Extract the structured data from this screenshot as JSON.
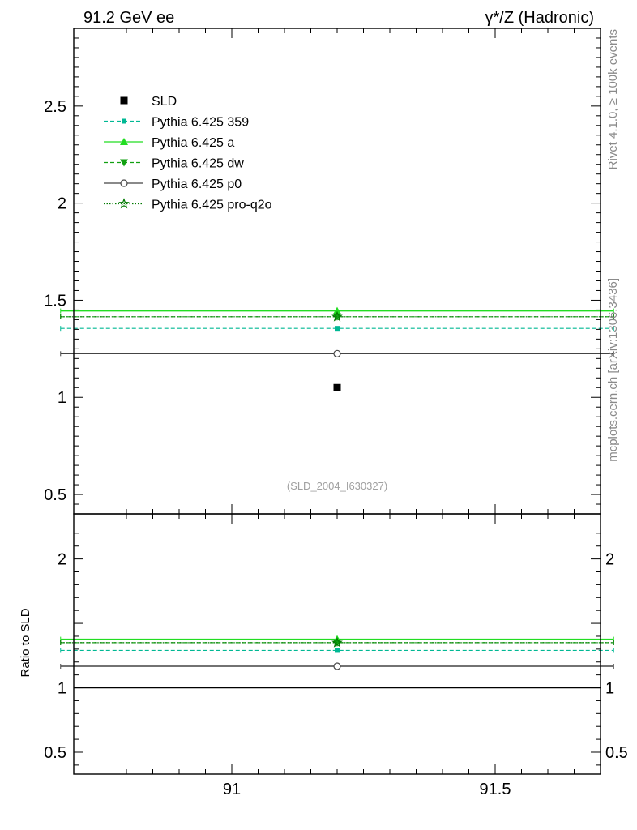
{
  "header": {
    "left_title": "91.2 GeV ee",
    "right_title": "γ*/Z (Hadronic)"
  },
  "side_labels": {
    "rivet": "Rivet 4.1.0, ≥ 100k events",
    "mcplots": "mcplots.cern.ch [arXiv:1306.3436]"
  },
  "watermark": "(SLD_2004_I630327)",
  "chart_data": [
    {
      "type": "scatter",
      "panel": "main",
      "x_range": [
        90.7,
        91.7
      ],
      "ylim": [
        0.4,
        2.9
      ],
      "y_ticks": [
        0.5,
        1,
        1.5,
        2,
        2.5
      ],
      "y_tick_labels": [
        "0.5",
        "1",
        "1.5",
        "2",
        "2.5"
      ],
      "legend_position": "top-left",
      "series": [
        {
          "name": "SLD",
          "color": "#000000",
          "marker": "square-filled",
          "line": "none",
          "x": [
            91.2
          ],
          "y": [
            1.05
          ],
          "xerr": [
            0
          ]
        },
        {
          "name": "Pythia 6.425 359",
          "color": "#00b894",
          "marker": "square-small",
          "line": "dashed",
          "x": [
            91.2
          ],
          "y": [
            1.355
          ],
          "xerr": [
            0.525
          ]
        },
        {
          "name": "Pythia 6.425 a",
          "color": "#22dd22",
          "marker": "triangle-up",
          "line": "solid",
          "x": [
            91.2
          ],
          "y": [
            1.445
          ],
          "xerr": [
            0.525
          ]
        },
        {
          "name": "Pythia 6.425 dw",
          "color": "#11a011",
          "marker": "triangle-down",
          "line": "dashed",
          "x": [
            91.2
          ],
          "y": [
            1.415
          ],
          "xerr": [
            0.525
          ]
        },
        {
          "name": "Pythia 6.425 p0",
          "color": "#444444",
          "marker": "circle-open",
          "line": "solid",
          "x": [
            91.2
          ],
          "y": [
            1.225
          ],
          "xerr": [
            0.525
          ]
        },
        {
          "name": "Pythia 6.425 pro-q2o",
          "color": "#007a00",
          "marker": "star-open",
          "line": "dotted",
          "x": [
            91.2
          ],
          "y": [
            1.415
          ],
          "xerr": [
            0.525
          ]
        }
      ]
    },
    {
      "type": "line",
      "panel": "ratio",
      "ylabel": "Ratio to SLD",
      "x_range": [
        90.7,
        91.7
      ],
      "x_ticks": [
        91,
        91.5
      ],
      "x_tick_labels": [
        "91",
        "91.5"
      ],
      "ylim": [
        0.33,
        2.35
      ],
      "y_ticks": [
        0.5,
        1,
        2
      ],
      "y_tick_labels": [
        "0.5",
        "1",
        "2"
      ],
      "reference_line": 1,
      "series": [
        {
          "name": "Pythia 6.425 359",
          "color": "#00b894",
          "marker": "square-small",
          "line": "dashed",
          "x": [
            91.2
          ],
          "y": [
            1.29
          ],
          "xerr": [
            0.525
          ]
        },
        {
          "name": "Pythia 6.425 a",
          "color": "#22dd22",
          "marker": "triangle-up",
          "line": "solid",
          "x": [
            91.2
          ],
          "y": [
            1.377
          ],
          "xerr": [
            0.525
          ]
        },
        {
          "name": "Pythia 6.425 dw",
          "color": "#11a011",
          "marker": "triangle-down",
          "line": "dashed",
          "x": [
            91.2
          ],
          "y": [
            1.35
          ],
          "xerr": [
            0.525
          ]
        },
        {
          "name": "Pythia 6.425 p0",
          "color": "#444444",
          "marker": "circle-open",
          "line": "solid",
          "x": [
            91.2
          ],
          "y": [
            1.167
          ],
          "xerr": [
            0.525
          ]
        },
        {
          "name": "Pythia 6.425 pro-q2o",
          "color": "#007a00",
          "marker": "star-open",
          "line": "dotted",
          "x": [
            91.2
          ],
          "y": [
            1.35
          ],
          "xerr": [
            0.525
          ]
        }
      ]
    }
  ]
}
